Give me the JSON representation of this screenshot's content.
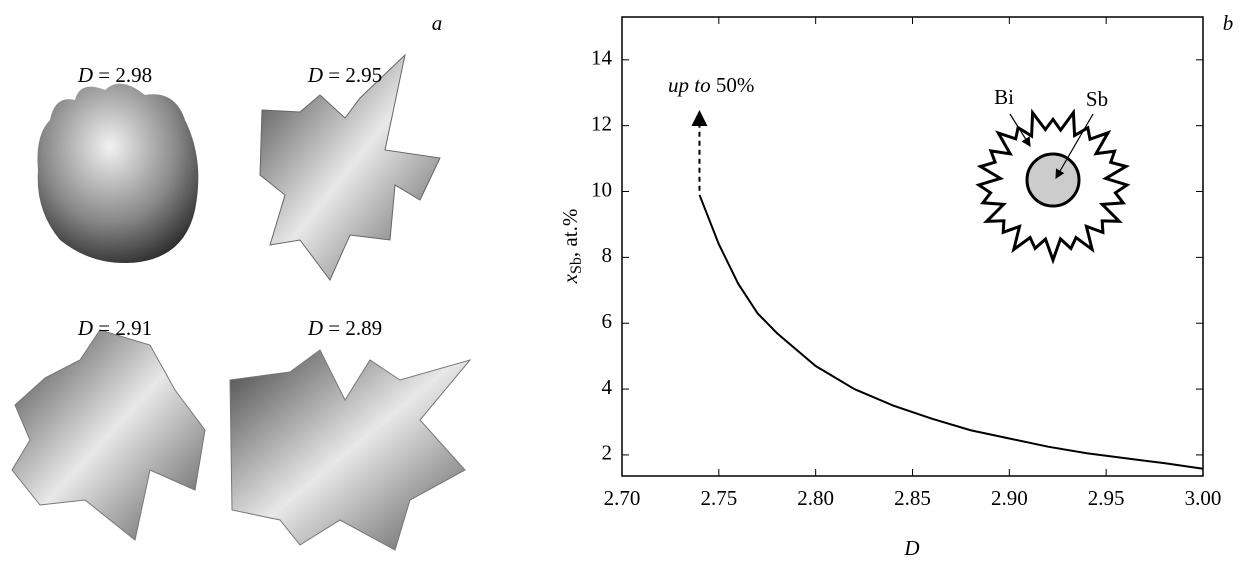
{
  "panel_a": {
    "label": "a",
    "items": [
      {
        "var": "D",
        "value_text": "= 2.98"
      },
      {
        "var": "D",
        "value_text": "= 2.95"
      },
      {
        "var": "D",
        "value_text": "= 2.91"
      },
      {
        "var": "D",
        "value_text": "= 2.89"
      }
    ]
  },
  "chart_data": {
    "type": "line",
    "panel_label": "b",
    "x_label": "D",
    "y_label": {
      "var": "x",
      "sub": "Sb",
      "rest": ", at.%"
    },
    "annotation": {
      "italic": "up to",
      "text": "50%"
    },
    "inset_labels": [
      "Bi",
      "Sb"
    ],
    "x": [
      2.74,
      2.75,
      2.76,
      2.77,
      2.78,
      2.8,
      2.82,
      2.84,
      2.86,
      2.88,
      2.9,
      2.92,
      2.94,
      2.96,
      2.98,
      3.0
    ],
    "series": [
      {
        "color": "#000000",
        "values": [
          9.9,
          8.4,
          7.2,
          6.3,
          5.7,
          4.7,
          4.0,
          3.5,
          3.1,
          2.75,
          2.5,
          2.25,
          2.05,
          1.9,
          1.75,
          1.58
        ]
      }
    ],
    "xlim": [
      2.7,
      3.0
    ],
    "xticks": [
      {
        "value": 2.7,
        "label": "2.70"
      },
      {
        "value": 2.75,
        "label": "2.75"
      },
      {
        "value": 2.8,
        "label": "2.80"
      },
      {
        "value": 2.85,
        "label": "2.85"
      },
      {
        "value": 2.9,
        "label": "2.90"
      },
      {
        "value": 2.95,
        "label": "2.95"
      },
      {
        "value": 3.0,
        "label": "3.00"
      }
    ],
    "ylim": [
      1.36,
      15.3
    ],
    "yticks": [
      2,
      4,
      6,
      8,
      10,
      12,
      14
    ]
  }
}
